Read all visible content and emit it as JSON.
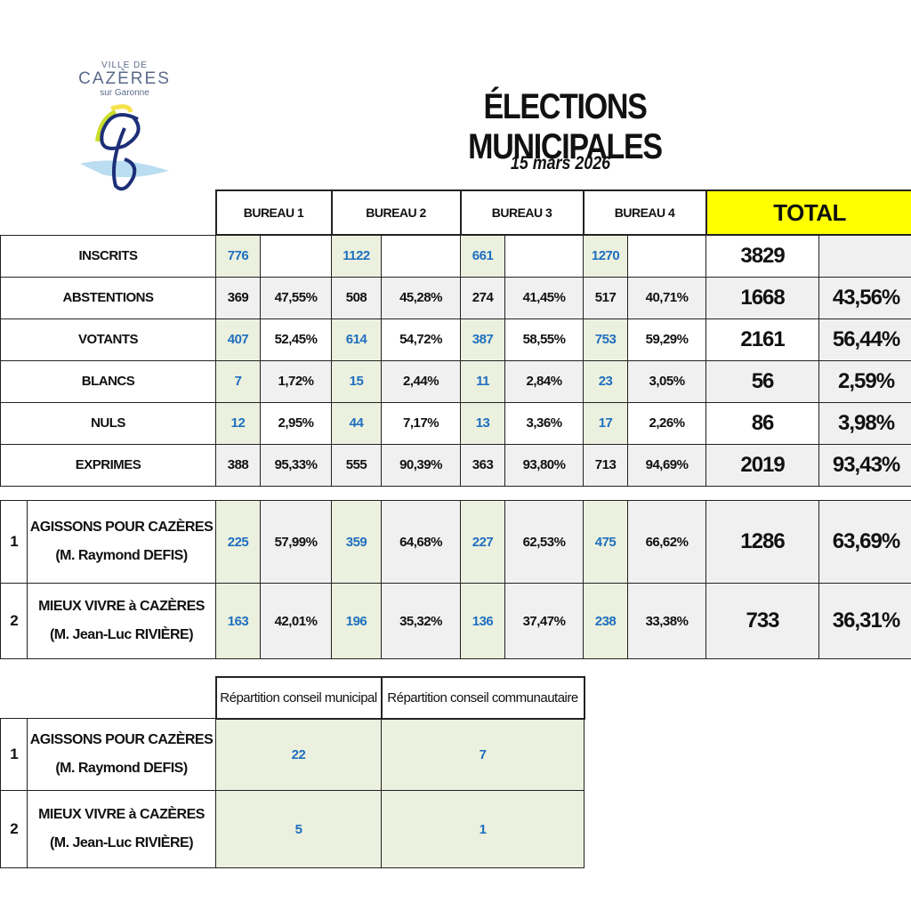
{
  "logo": {
    "line1": "VILLE DE",
    "line2": "CAZÈRES",
    "line3": "sur Garonne"
  },
  "title": "ÉLECTIONS MUNICIPALES",
  "date": "15 mars 2026",
  "colors": {
    "accent_yellow": "#ffff00",
    "blue_number": "#1f6fbf",
    "input_cell": "#ebf1de",
    "grey_cell": "#f0f0f0"
  },
  "results": {
    "headers": [
      "BUREAU 1",
      "BUREAU 2",
      "BUREAU 3",
      "BUREAU 4"
    ],
    "total_header": "TOTAL",
    "rows": [
      {
        "label": "INSCRITS",
        "cells": [
          [
            "776",
            ""
          ],
          [
            "1122",
            ""
          ],
          [
            "661",
            ""
          ],
          [
            "1270",
            ""
          ]
        ],
        "total": [
          "3829",
          ""
        ],
        "blue": true
      },
      {
        "label": "ABSTENTIONS",
        "cells": [
          [
            "369",
            "47,55%"
          ],
          [
            "508",
            "45,28%"
          ],
          [
            "274",
            "41,45%"
          ],
          [
            "517",
            "40,71%"
          ]
        ],
        "total": [
          "1668",
          "43,56%"
        ],
        "blue": false
      },
      {
        "label": "VOTANTS",
        "cells": [
          [
            "407",
            "52,45%"
          ],
          [
            "614",
            "54,72%"
          ],
          [
            "387",
            "58,55%"
          ],
          [
            "753",
            "59,29%"
          ]
        ],
        "total": [
          "2161",
          "56,44%"
        ],
        "blue": true
      },
      {
        "label": "BLANCS",
        "cells": [
          [
            "7",
            "1,72%"
          ],
          [
            "15",
            "2,44%"
          ],
          [
            "11",
            "2,84%"
          ],
          [
            "23",
            "3,05%"
          ]
        ],
        "total": [
          "56",
          "2,59%"
        ],
        "blue": true
      },
      {
        "label": "NULS",
        "cells": [
          [
            "12",
            "2,95%"
          ],
          [
            "44",
            "7,17%"
          ],
          [
            "13",
            "3,36%"
          ],
          [
            "17",
            "2,26%"
          ]
        ],
        "total": [
          "86",
          "3,98%"
        ],
        "blue": true
      },
      {
        "label": "EXPRIMES",
        "cells": [
          [
            "388",
            "95,33%"
          ],
          [
            "555",
            "90,39%"
          ],
          [
            "363",
            "93,80%"
          ],
          [
            "713",
            "94,69%"
          ]
        ],
        "total": [
          "2019",
          "93,43%"
        ],
        "blue": false
      }
    ]
  },
  "candidates": [
    {
      "num": "1",
      "list": "AGISSONS POUR CAZÈRES",
      "head": "(M. Raymond DEFIS)",
      "cells": [
        [
          "225",
          "57,99%"
        ],
        [
          "359",
          "64,68%"
        ],
        [
          "227",
          "62,53%"
        ],
        [
          "475",
          "66,62%"
        ]
      ],
      "total": [
        "1286",
        "63,69%"
      ]
    },
    {
      "num": "2",
      "list": "MIEUX VIVRE à CAZÈRES",
      "head": "(M. Jean-Luc RIVIÈRE)",
      "cells": [
        [
          "163",
          "42,01%"
        ],
        [
          "196",
          "35,32%"
        ],
        [
          "136",
          "37,47%"
        ],
        [
          "238",
          "33,38%"
        ]
      ],
      "total": [
        "733",
        "36,31%"
      ]
    }
  ],
  "seats": {
    "headers": [
      "Répartition conseil municipal",
      "Répartition conseil communautaire"
    ],
    "rows": [
      {
        "num": "1",
        "list": "AGISSONS POUR CAZÈRES",
        "head": "(M. Raymond DEFIS)",
        "municipal": "22",
        "communautaire": "7"
      },
      {
        "num": "2",
        "list": "MIEUX VIVRE à CAZÈRES",
        "head": "(M. Jean-Luc RIVIÈRE)",
        "municipal": "5",
        "communautaire": "1"
      }
    ]
  }
}
